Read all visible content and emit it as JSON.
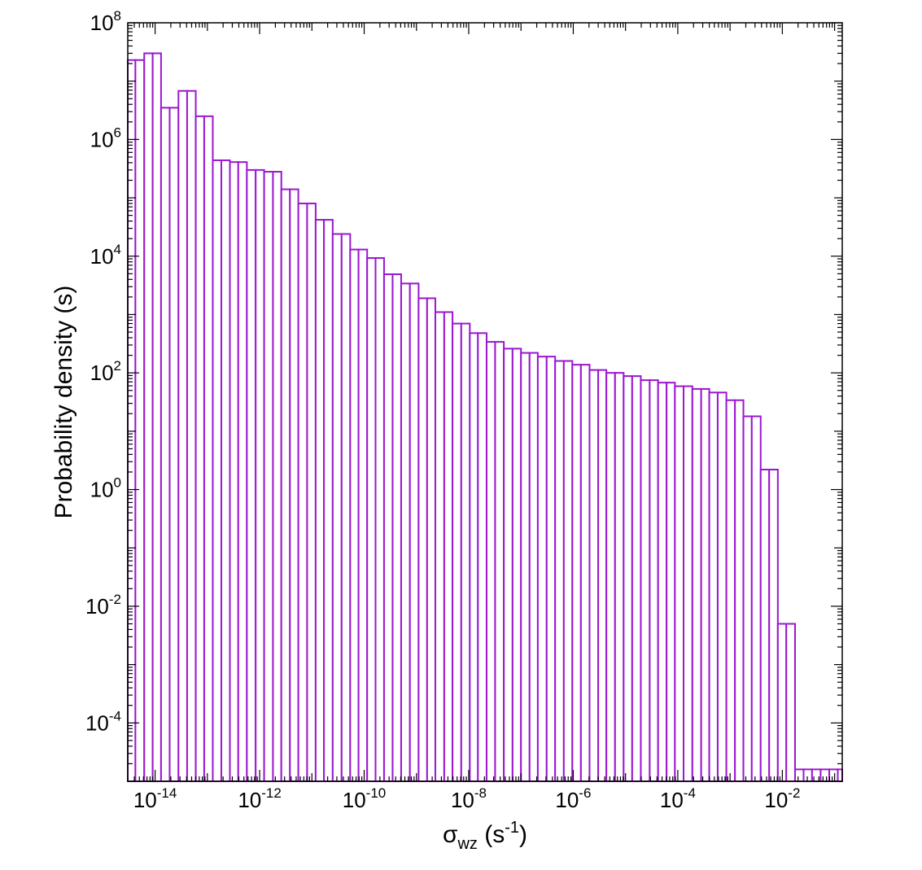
{
  "chart_data": {
    "type": "bar",
    "variant": "histogram",
    "xscale": "log",
    "yscale": "log",
    "xlim": [
      3e-15,
      0.14
    ],
    "ylim": [
      1e-05,
      100000000.0
    ],
    "xlabel": {
      "base": "σ",
      "subscript": "wz",
      "unit_open": " (s",
      "unit_exp": "-1",
      "unit_close": ")"
    },
    "ylabel": "Probability density (s)",
    "xticks": [
      {
        "value": 1e-14,
        "base": "10",
        "exp": "-14"
      },
      {
        "value": 1e-12,
        "base": "10",
        "exp": "-12"
      },
      {
        "value": 1e-10,
        "base": "10",
        "exp": "-10"
      },
      {
        "value": 1e-08,
        "base": "10",
        "exp": "-8"
      },
      {
        "value": 1e-06,
        "base": "10",
        "exp": "-6"
      },
      {
        "value": 0.0001,
        "base": "10",
        "exp": "-4"
      },
      {
        "value": 0.01,
        "base": "10",
        "exp": "-2"
      }
    ],
    "yticks": [
      {
        "value": 100000000.0,
        "base": "10",
        "exp": "8"
      },
      {
        "value": 1000000.0,
        "base": "10",
        "exp": "6"
      },
      {
        "value": 10000.0,
        "base": "10",
        "exp": "4"
      },
      {
        "value": 100.0,
        "base": "10",
        "exp": "2"
      },
      {
        "value": 1.0,
        "base": "10",
        "exp": "0"
      },
      {
        "value": 0.01,
        "base": "10",
        "exp": "-2"
      },
      {
        "value": 0.0001,
        "base": "10",
        "exp": "-4"
      }
    ],
    "bins": {
      "edges": [
        3e-15,
        4.2e-15,
        6.2e-15,
        9e-15,
        1.3e-14,
        1.9e-14,
        2.8e-14,
        4.1e-14,
        6e-14,
        8.7e-14,
        1.27e-13,
        1.85e-13,
        2.7e-13,
        3.9e-13,
        5.7e-13,
        8.4e-13,
        1.22e-12,
        1.8e-12,
        2.6e-12,
        3.8e-12,
        5.5e-12,
        8.1e-12,
        1.18e-11,
        1.7e-11,
        2.5e-11,
        3.7e-11,
        5.4e-11,
        7.8e-11,
        1.14e-10,
        1.65e-10,
        2.4e-10,
        3.5e-10,
        5.1e-10,
        7.5e-10,
        1.1e-09,
        1.6e-09,
        2.3e-09,
        3.4e-09,
        4.9e-09,
        7.2e-09,
        1.05e-08,
        1.5e-08,
        2.2e-08,
        3.2e-08,
        4.7e-08,
        6.9e-08,
        1e-07,
        1.46e-07,
        2.1e-07,
        3.1e-07,
        4.5e-07,
        6.6e-07,
        9.6e-07,
        1.4e-06,
        2.05e-06,
        3e-06,
        4.3e-06,
        6.3e-06,
        9.2e-06,
        1.34e-05,
        1.96e-05,
        2.9e-05,
        4.2e-05,
        6.1e-05,
        8.8e-05,
        0.000129,
        0.00019,
        0.00028,
        0.0004,
        0.00058,
        0.00085,
        0.00124,
        0.0018,
        0.0026,
        0.00385,
        0.0056,
        0.0082,
        0.0119,
        0.0175,
        0.0255,
        0.037,
        0.054,
        0.079,
        0.115,
        0.14
      ],
      "values": [
        23000000.0,
        23000000.0,
        30000000.0,
        30000000.0,
        3500000.0,
        3500000.0,
        6800000.0,
        6800000.0,
        2500000.0,
        2500000.0,
        440000.0,
        440000.0,
        410000.0,
        410000.0,
        300000.0,
        300000.0,
        280000.0,
        280000.0,
        140000.0,
        140000.0,
        80000.0,
        80000.0,
        42000.0,
        42000.0,
        24000.0,
        24000.0,
        13000.0,
        13000.0,
        9300.0,
        9300.0,
        4900.0,
        4900.0,
        3400.0,
        3400.0,
        1900.0,
        1900.0,
        1100.0,
        1100.0,
        700.0,
        700.0,
        480.0,
        480.0,
        340.0,
        340.0,
        260.0,
        260.0,
        220.0,
        220.0,
        190.0,
        190.0,
        160.0,
        160.0,
        138.0,
        138.0,
        112.0,
        112.0,
        100.0,
        100.0,
        88.0,
        88.0,
        75.0,
        75.0,
        68.0,
        68.0,
        59.0,
        59.0,
        53.0,
        53.0,
        46.0,
        46.0,
        34.0,
        34.0,
        18.0,
        18.0,
        2.2,
        2.2,
        0.005,
        0.005,
        1.6e-05,
        1.6e-05,
        1.6e-05,
        1.6e-05,
        1.6e-05,
        1.6e-05
      ]
    },
    "grid": false,
    "legend": "none",
    "bar_fill": "#ffffff",
    "bar_edge_color": "#9b17d0",
    "axis_color": "#000000"
  }
}
